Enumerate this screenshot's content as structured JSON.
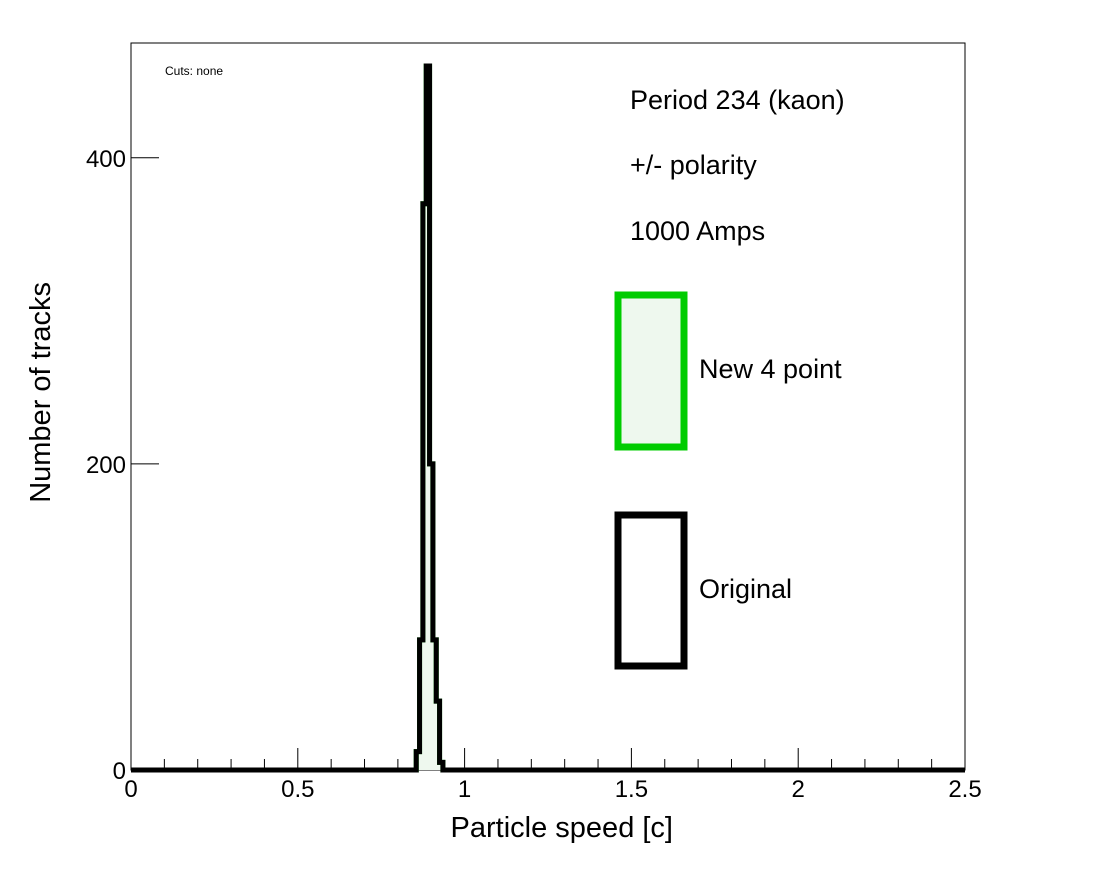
{
  "chart_data": {
    "type": "bar",
    "title": "",
    "xlabel": "Particle speed [c]",
    "ylabel": "Number of tracks",
    "xlim": [
      0,
      2.5
    ],
    "ylim": [
      0,
      475
    ],
    "xticks": [
      0,
      0.5,
      1,
      1.5,
      2,
      2.5
    ],
    "xtick_labels": [
      "0",
      "0.5",
      "1",
      "1.5",
      "2",
      "2.5"
    ],
    "yticks": [
      0,
      200,
      400
    ],
    "ytick_labels": [
      "0",
      "200",
      "400"
    ],
    "grid": false,
    "cuts_note": "Cuts: none",
    "info_lines": [
      "Period 234 (kaon)",
      "+/- polarity",
      "1000 Amps"
    ],
    "legend_placement": "right",
    "series": [
      {
        "name": "New 4 point",
        "color": "#00cc00",
        "fill": "#eef8ee",
        "bin_edges": [
          0.855,
          0.865,
          0.875,
          0.885,
          0.895,
          0.905,
          0.915,
          0.925,
          0.935
        ],
        "values": [
          12,
          85,
          370,
          460,
          200,
          85,
          45,
          5
        ]
      },
      {
        "name": "Original",
        "color": "#000000",
        "fill": "none",
        "bin_edges": [
          0.855,
          0.865,
          0.875,
          0.885,
          0.895,
          0.905,
          0.915,
          0.925,
          0.935
        ],
        "values": [
          12,
          85,
          370,
          460,
          200,
          85,
          45,
          5
        ]
      }
    ]
  }
}
